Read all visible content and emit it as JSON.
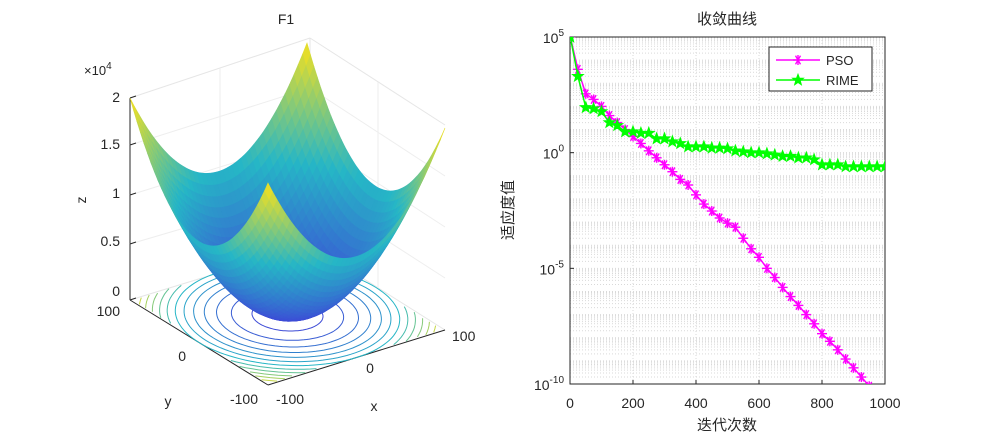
{
  "colors": {
    "pso": "#ff00ff",
    "rime": "#00ff00",
    "surface_low": "#3f3fd8",
    "surface_mid": "#26b6c6",
    "surface_high": "#f9e11b",
    "axis": "#262626",
    "grid": "#d9d9d9"
  },
  "chart_data": [
    {
      "type": "surface",
      "title": "F1",
      "xlabel": "x",
      "ylabel": "y",
      "zlabel": "z",
      "z_exponent_label": "×10",
      "z_exponent_value": "4",
      "x_ticks": [
        "-100",
        "0",
        "100"
      ],
      "y_ticks": [
        "100",
        "0",
        "-100"
      ],
      "z_ticks": [
        "0",
        "0.5",
        "1",
        "1.5",
        "2"
      ],
      "xlim": [
        -100,
        100
      ],
      "ylim": [
        -100,
        100
      ],
      "zlim": [
        0,
        20000
      ],
      "function": "z = x^2 + y^2",
      "contour_on_floor": true,
      "colormap": "parula"
    },
    {
      "type": "line",
      "title": "收敛曲线",
      "xlabel": "迭代次数",
      "ylabel": "适应度值",
      "yscale": "log",
      "xlim": [
        0,
        1000
      ],
      "ylim": [
        1e-10,
        100000.0
      ],
      "x_ticks": [
        "0",
        "200",
        "400",
        "600",
        "800",
        "1000"
      ],
      "y_ticks": [
        {
          "base": "10",
          "exp": "5"
        },
        {
          "base": "10",
          "exp": "0"
        },
        {
          "base": "10",
          "exp": "-5"
        },
        {
          "base": "10",
          "exp": "-10"
        }
      ],
      "grid": true,
      "legend": "top-right",
      "x": [
        1,
        25,
        50,
        75,
        100,
        125,
        150,
        175,
        200,
        225,
        250,
        275,
        300,
        325,
        350,
        375,
        400,
        425,
        450,
        475,
        500,
        525,
        550,
        575,
        600,
        625,
        650,
        675,
        700,
        725,
        750,
        775,
        800,
        825,
        850,
        875,
        900,
        925,
        950,
        975,
        1000
      ],
      "series": [
        {
          "name": "PSO",
          "marker": "asterisk",
          "values": [
            100000,
            4000,
            350,
            200,
            100,
            40,
            20,
            10,
            5,
            2.5,
            1.2,
            0.6,
            0.3,
            0.15,
            0.07,
            0.04,
            0.015,
            0.006,
            0.003,
            0.0015,
            0.0009,
            0.0006,
            0.0002,
            7e-05,
            3e-05,
            1e-05,
            4e-06,
            1.5e-06,
            6e-07,
            2.5e-07,
            1e-07,
            4e-08,
            1.5e-08,
            7e-09,
            3e-09,
            1.2e-09,
            5e-10,
            2e-10,
            8e-11,
            4e-11,
            2e-11
          ]
        },
        {
          "name": "RIME",
          "marker": "pentagram",
          "values": [
            100000,
            2000,
            90,
            80,
            60,
            20,
            15,
            8,
            8,
            7,
            7,
            4,
            4,
            3,
            2.5,
            1.8,
            1.8,
            1.8,
            1.6,
            1.6,
            1.5,
            1.2,
            1.1,
            1.0,
            1.0,
            0.9,
            0.8,
            0.7,
            0.7,
            0.6,
            0.6,
            0.5,
            0.3,
            0.3,
            0.3,
            0.25,
            0.25,
            0.25,
            0.25,
            0.25,
            0.25
          ]
        }
      ]
    }
  ]
}
